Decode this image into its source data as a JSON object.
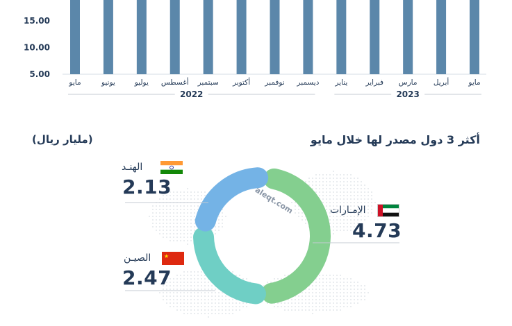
{
  "chart_data": [
    {
      "type": "bar",
      "categories": [
        "مايو",
        "يونيو",
        "يوليو",
        "أغسطس",
        "سبتمبر",
        "أكتوبر",
        "نوفمبر",
        "ديسمبر",
        "يناير",
        "فبراير",
        "مارس",
        "أبريل",
        "مايو"
      ],
      "years": [
        {
          "label": "2022",
          "categories": [
            "مايو",
            "يونيو",
            "يوليو",
            "أغسطس",
            "سبتمبر",
            "أكتوبر",
            "نوفمبر",
            "ديسمبر"
          ]
        },
        {
          "label": "2023",
          "categories": [
            "يناير",
            "فبراير",
            "مارس",
            "أبريل",
            "مايو"
          ]
        }
      ],
      "yticks": [
        "15.00",
        "10.00",
        "5.00"
      ],
      "ylim_visible": [
        5,
        19
      ],
      "values_note_visible": "bars extend above the visible top edge",
      "bar_color": "#5b87aa"
    },
    {
      "type": "pie",
      "title": "أكثر 3 دول مصدر لها خلال مايو",
      "unit": "(مليار ريال)",
      "slices": [
        {
          "label": "الإمـارات",
          "value": 4.73,
          "value_text": "4.73",
          "color": "#84cf8f"
        },
        {
          "label": "الصيـن",
          "value": 2.47,
          "value_text": "2.47",
          "color": "#6fcfc5"
        },
        {
          "label": "الهنـد",
          "value": 2.13,
          "value_text": "2.13",
          "color": "#74b3e6"
        }
      ]
    }
  ],
  "colors": {
    "text": "#243a57",
    "ring": "#243a57",
    "bar": "#5b87aa"
  },
  "watermark": "aleqt.com"
}
